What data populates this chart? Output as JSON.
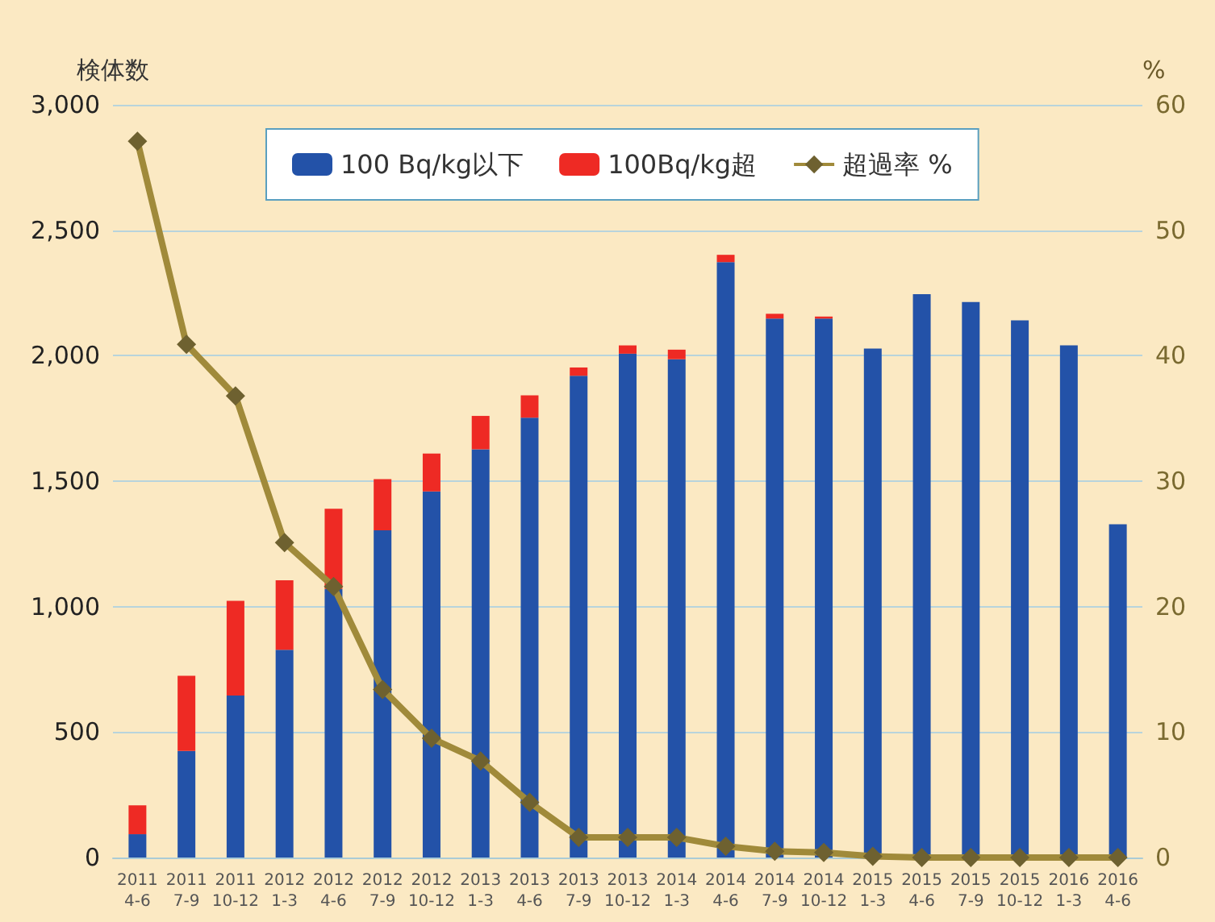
{
  "chart_data": {
    "type": "bar",
    "stacked": true,
    "ylabel": "検体数",
    "y2label": "%",
    "categories": [
      "2011\n4-6",
      "2011\n7-9",
      "2011\n10-12",
      "2012\n1-3",
      "2012\n4-6",
      "2012\n7-9",
      "2012\n10-12",
      "2013\n1-3",
      "2013\n4-6",
      "2013\n7-9",
      "2013\n10-12",
      "2014\n1-3",
      "2014\n4-6",
      "2014\n7-9",
      "2014\n10-12",
      "2015\n1-3",
      "2015\n4-6",
      "2015\n7-9",
      "2015\n10-12",
      "2016\n1-3",
      "2016\n4-6"
    ],
    "series": [
      {
        "name": "100 Bq/kg以下",
        "color": "#2352a8",
        "values": [
          93,
          425,
          646,
          828,
          1070,
          1304,
          1459,
          1627,
          1753,
          1920,
          2008,
          1986,
          2373,
          2148,
          2148,
          2028,
          2245,
          2214,
          2141,
          2041,
          1328
        ]
      },
      {
        "name": "100Bq/kg超",
        "color": "#ee2a24",
        "values": [
          115,
          299,
          377,
          277,
          320,
          204,
          151,
          133,
          89,
          33,
          33,
          38,
          29,
          19,
          8,
          null,
          null,
          null,
          null,
          null,
          null
        ]
      },
      {
        "name": "超過率 %",
        "type": "line",
        "axis": "y2",
        "color": "#a08a3a",
        "marker": "diamond",
        "values": [
          57.1,
          40.9,
          36.8,
          25.1,
          21.6,
          13.4,
          9.5,
          7.7,
          4.4,
          1.6,
          1.6,
          1.6,
          0.9,
          0.5,
          0.4,
          0.1,
          0,
          0,
          0,
          0,
          0
        ]
      }
    ],
    "ylim": [
      0,
      3000
    ],
    "yticks": [
      {
        "value": 0,
        "label": "0"
      },
      {
        "value": 500,
        "label": "500"
      },
      {
        "value": 1000,
        "label": "1,000"
      },
      {
        "value": 1500,
        "label": "1,500"
      },
      {
        "value": 2000,
        "label": "2,000"
      },
      {
        "value": 2500,
        "label": "2,500"
      },
      {
        "value": 3000,
        "label": "3,000"
      }
    ],
    "y2lim": [
      0,
      60
    ],
    "y2ticks": [
      0,
      10,
      20,
      30,
      40,
      50,
      60
    ],
    "grid": "y",
    "legend": "top"
  }
}
